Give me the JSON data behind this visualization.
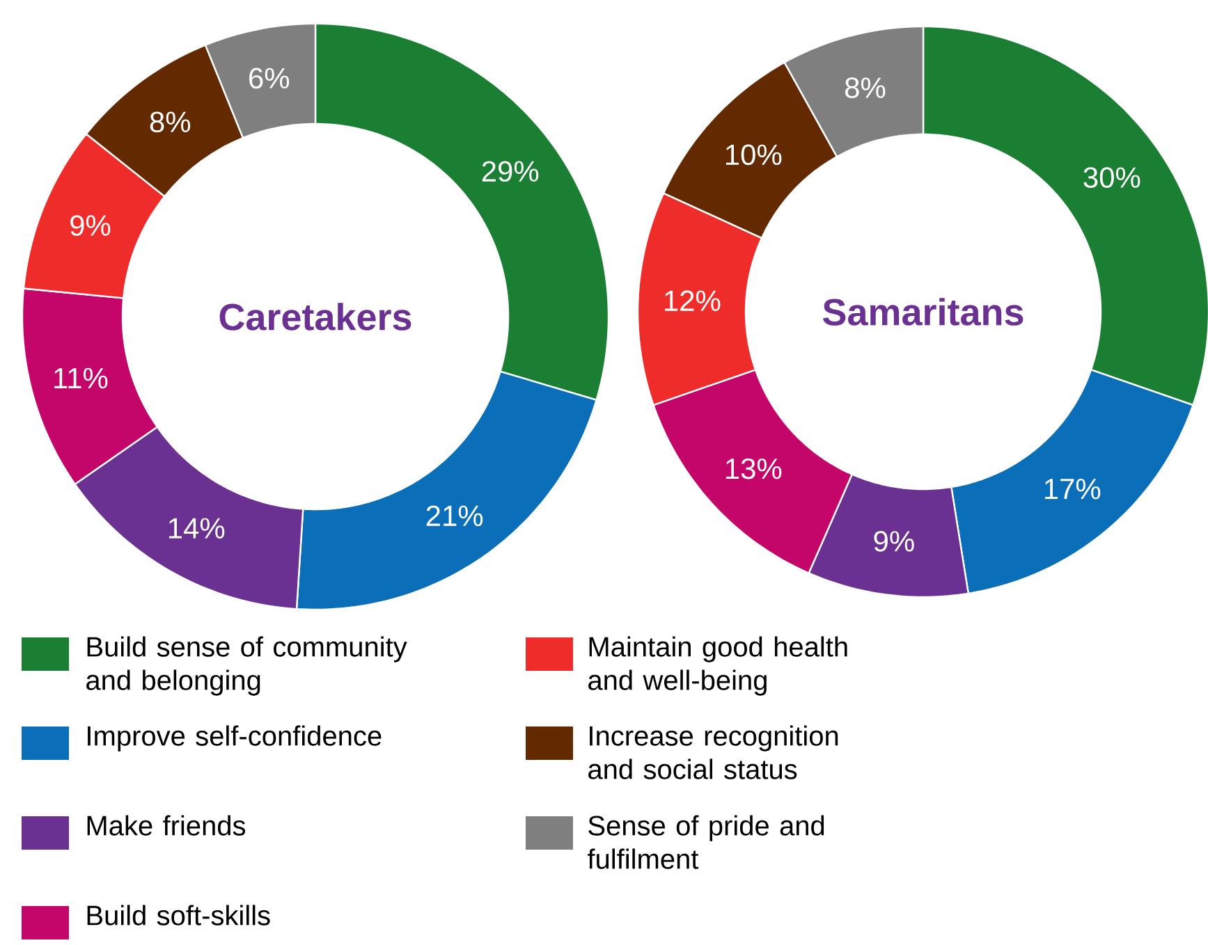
{
  "chart_data": [
    {
      "type": "donut",
      "title": "Caretakers",
      "categories": [
        "Build sense of community and belonging",
        "Improve self-confidence",
        "Make friends",
        "Build soft-skills",
        "Maintain good health and well-being",
        "Increase recognition and social status",
        "Sense of pride and fulfilment"
      ],
      "values": [
        29,
        21,
        14,
        11,
        9,
        8,
        6
      ],
      "value_labels": [
        "29%",
        "21%",
        "14%",
        "11%",
        "9%",
        "8%",
        "6%"
      ],
      "colors": [
        "#1a7f32",
        "#0a6fb8",
        "#6a3192",
        "#c4066a",
        "#ee2d2a",
        "#632a02",
        "#7f7f7f"
      ],
      "legend": "bottom"
    },
    {
      "type": "donut",
      "title": "Samaritans",
      "categories": [
        null,
        null,
        null,
        null,
        null,
        null,
        null
      ],
      "values": [
        30,
        17,
        9,
        13,
        12,
        10,
        8
      ],
      "value_labels": [
        "30%",
        "17%",
        "9%",
        "13%",
        "12%",
        "10%",
        "8%"
      ],
      "colors": [
        "#1a7f32",
        "#0a6fb8",
        "#6a3192",
        "#c4066a",
        "#ee2d2a",
        "#632a02",
        "#7f7f7f"
      ]
    }
  ]
}
